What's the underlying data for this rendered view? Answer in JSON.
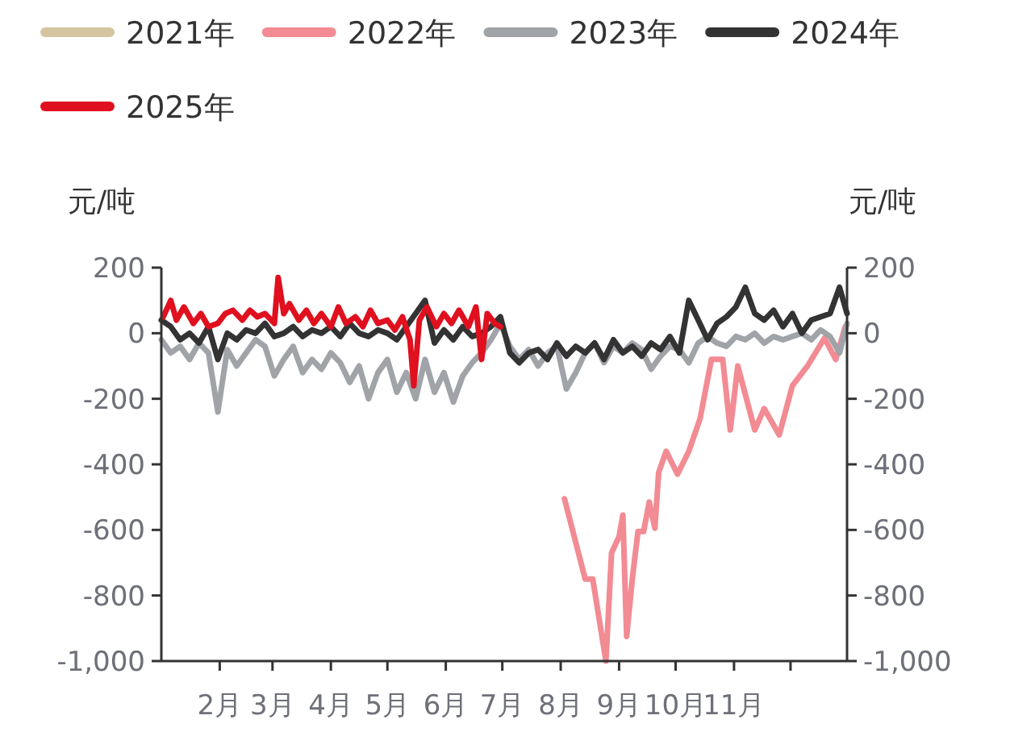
{
  "chart_data": {
    "type": "line",
    "ylabel": "元/吨",
    "y2label": "元/吨",
    "x": [
      "--01-01",
      "--01-06",
      "--01-11",
      "--01-16",
      "--01-21",
      "--01-26",
      "--01-31",
      "--02-05",
      "--02-10",
      "--02-15",
      "--02-20",
      "--02-25",
      "--03-02",
      "--03-07",
      "--03-12",
      "--03-17",
      "--03-22",
      "--03-27",
      "--04-01",
      "--04-06",
      "--04-11",
      "--04-16",
      "--04-21",
      "--04-26",
      "--05-01",
      "--05-06",
      "--05-11",
      "--05-16",
      "--05-21",
      "--05-26",
      "--05-31",
      "--06-05",
      "--06-10",
      "--06-15",
      "--06-20",
      "--06-25",
      "--06-30",
      "--07-05",
      "--07-10",
      "--07-15",
      "--07-20",
      "--07-25",
      "--07-30",
      "--08-04",
      "--08-09",
      "--08-14",
      "--08-19",
      "--08-24",
      "--08-29",
      "--09-03",
      "--09-08",
      "--09-13",
      "--09-18",
      "--09-23",
      "--09-28",
      "--10-03",
      "--10-08",
      "--10-13",
      "--10-18",
      "--10-23",
      "--10-28",
      "--11-02",
      "--11-07",
      "--11-12",
      "--11-17",
      "--11-22",
      "--11-27",
      "--12-02",
      "--12-07",
      "--12-12",
      "--12-17",
      "--12-22",
      "--12-27",
      "--12-31"
    ],
    "series": [
      {
        "name": "2021年",
        "color": "#d4c4a0",
        "values": [
          null,
          null,
          null,
          null,
          null,
          null,
          null,
          null,
          null,
          null,
          null,
          null,
          null,
          null,
          null,
          null,
          null,
          null,
          null,
          null,
          null,
          null,
          null,
          null,
          null,
          null,
          null,
          null,
          null,
          null,
          null,
          null,
          null,
          null,
          null,
          null,
          null,
          null,
          null,
          null,
          null,
          null,
          null,
          null,
          null,
          null,
          null,
          null,
          null,
          null,
          null,
          null,
          null,
          null,
          null,
          null,
          null,
          null,
          null,
          null,
          null,
          null,
          null,
          null,
          null,
          null,
          null,
          null,
          null,
          null,
          null,
          null,
          null,
          null
        ]
      },
      {
        "name": "2022年",
        "color": "#f28b93",
        "x": [
          "--08-03",
          "--08-14",
          "--08-18",
          "--08-25",
          "--08-28",
          "--09-01",
          "--09-03",
          "--09-05",
          "--09-08",
          "--09-11",
          "--09-14",
          "--09-17",
          "--09-20",
          "--09-22",
          "--09-26",
          "--10-02",
          "--10-08",
          "--10-14",
          "--10-20",
          "--10-26",
          "--10-30",
          "--11-03",
          "--11-12",
          "--11-17",
          "--11-25",
          "--12-02",
          "--12-10",
          "--12-19",
          "--12-25",
          "--12-30"
        ],
        "values": [
          -505,
          -750,
          -750,
          -1000,
          -670,
          -620,
          -555,
          -925,
          -750,
          -605,
          -605,
          -515,
          -595,
          -425,
          -360,
          -430,
          -360,
          -260,
          -80,
          -80,
          -295,
          -100,
          -295,
          -230,
          -310,
          -160,
          -100,
          -15,
          -80,
          20
        ]
      },
      {
        "name": "2023年",
        "color": "#a0a3a8",
        "values": [
          -20,
          -60,
          -40,
          -80,
          -30,
          -60,
          -240,
          -50,
          -100,
          -60,
          -20,
          -40,
          -130,
          -80,
          -40,
          -120,
          -80,
          -110,
          -60,
          -90,
          -150,
          -100,
          -200,
          -120,
          -80,
          -180,
          -120,
          -200,
          -80,
          -180,
          -120,
          -210,
          -130,
          -90,
          -60,
          -20,
          30,
          -40,
          -80,
          -50,
          -100,
          -60,
          -40,
          -170,
          -120,
          -60,
          -30,
          -90,
          -40,
          -60,
          -30,
          -50,
          -110,
          -70,
          -40,
          -50,
          -90,
          -30,
          -10,
          -30,
          -40,
          -10,
          -20,
          0,
          -30,
          -10,
          -20,
          -10,
          0,
          -20,
          10,
          -10,
          -60,
          30
        ]
      },
      {
        "name": "2024年",
        "color": "#333333",
        "values": [
          40,
          20,
          -20,
          0,
          -30,
          20,
          -80,
          0,
          -20,
          10,
          0,
          30,
          -10,
          0,
          20,
          -10,
          10,
          0,
          20,
          -10,
          30,
          0,
          -10,
          10,
          0,
          -20,
          20,
          60,
          100,
          -30,
          10,
          -20,
          20,
          -10,
          0,
          20,
          50,
          -60,
          -90,
          -60,
          -50,
          -80,
          -30,
          -70,
          -40,
          -60,
          -30,
          -80,
          -20,
          -60,
          -40,
          -70,
          -30,
          -50,
          -10,
          -60,
          100,
          40,
          -20,
          30,
          50,
          80,
          140,
          60,
          40,
          70,
          20,
          60,
          0,
          40,
          50,
          60,
          140,
          60
        ]
      },
      {
        "name": "2025年",
        "color": "#e0101e",
        "x": [
          "--01-02",
          "--01-06",
          "--01-09",
          "--01-13",
          "--01-18",
          "--01-22",
          "--01-26",
          "--01-31",
          "--02-04",
          "--02-08",
          "--02-13",
          "--02-17",
          "--02-21",
          "--02-25",
          "--03-02",
          "--03-04",
          "--03-07",
          "--03-10",
          "--03-15",
          "--03-19",
          "--03-23",
          "--03-27",
          "--04-01",
          "--04-05",
          "--04-09",
          "--04-14",
          "--04-18",
          "--04-22",
          "--04-26",
          "--05-01",
          "--05-05",
          "--05-09",
          "--05-13",
          "--05-15",
          "--05-18",
          "--05-22",
          "--05-27",
          "--05-31",
          "--06-04",
          "--06-08",
          "--06-13",
          "--06-17",
          "--06-20",
          "--06-23",
          "--06-27",
          "--06-30"
        ],
        "values": [
          50,
          100,
          40,
          80,
          30,
          60,
          20,
          30,
          60,
          70,
          40,
          70,
          50,
          60,
          30,
          170,
          60,
          90,
          40,
          70,
          30,
          60,
          20,
          80,
          30,
          50,
          20,
          70,
          30,
          40,
          10,
          50,
          -20,
          -160,
          40,
          80,
          20,
          60,
          30,
          70,
          20,
          80,
          -80,
          60,
          30,
          20
        ]
      }
    ],
    "xlim": [
      "--01-01",
      "--12-31"
    ],
    "xticks": [
      {
        "value": "--02-01",
        "label": "2月"
      },
      {
        "value": "--03-01",
        "label": "3月"
      },
      {
        "value": "--04-01",
        "label": "4月"
      },
      {
        "value": "--05-01",
        "label": "5月"
      },
      {
        "value": "--06-01",
        "label": "6月"
      },
      {
        "value": "--07-01",
        "label": "7月"
      },
      {
        "value": "--08-01",
        "label": "8月"
      },
      {
        "value": "--09-01",
        "label": "9月"
      },
      {
        "value": "--10-01",
        "label": "10月"
      },
      {
        "value": "--11-01",
        "label": "11月"
      },
      {
        "value": "--12-01",
        "label": null
      }
    ],
    "ylim": [
      -1000,
      200
    ],
    "yticks": [
      200,
      0,
      -200,
      -400,
      -600,
      -800,
      {
        "value": -1000,
        "label": "-1,000"
      }
    ],
    "y2lim": [
      -1000,
      200
    ],
    "y2ticks": [
      200,
      0,
      -200,
      -400,
      -600,
      -800,
      {
        "value": -1000,
        "label": "-1,000"
      }
    ],
    "grid": false,
    "legend": "top",
    "marker": "none",
    "line_style": "solid"
  }
}
